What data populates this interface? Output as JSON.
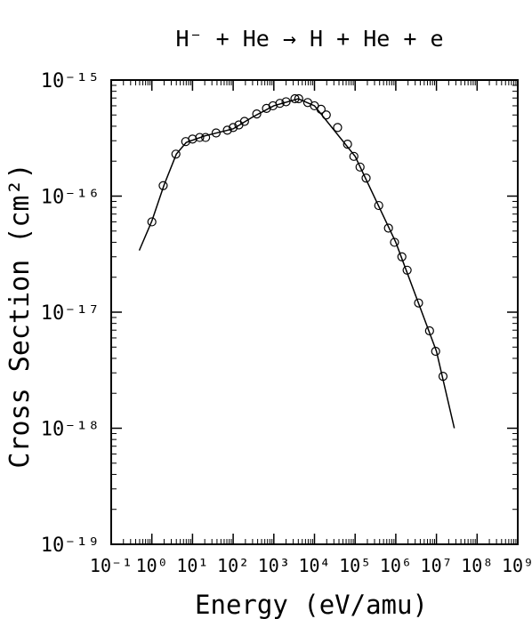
{
  "chart_data": {
    "type": "scatter",
    "title": "H⁻ + He → H + He + e",
    "x_label": "Energy (eV/amu)",
    "y_label": "Cross Section (cm²)",
    "log_x": true,
    "log_y": true,
    "xlim": [
      0.1,
      1000000000
    ],
    "ylim": [
      1e-19,
      1e-15
    ],
    "xticks": [
      {
        "value": 0.1,
        "label": "10⁻¹"
      },
      {
        "value": 1,
        "label": "10⁰"
      },
      {
        "value": 10,
        "label": "10¹"
      },
      {
        "value": 100,
        "label": "10²"
      },
      {
        "value": 1000,
        "label": "10³"
      },
      {
        "value": 10000,
        "label": "10⁴"
      },
      {
        "value": 100000,
        "label": "10⁵"
      },
      {
        "value": 1000000,
        "label": "10⁶"
      },
      {
        "value": 10000000,
        "label": "10⁷"
      },
      {
        "value": 100000000,
        "label": "10⁸"
      },
      {
        "value": 1000000000,
        "label": "10⁹"
      }
    ],
    "yticks": [
      {
        "value": 1e-19,
        "label": "10⁻¹⁹"
      },
      {
        "value": 1e-18,
        "label": "10⁻¹⁸"
      },
      {
        "value": 1e-17,
        "label": "10⁻¹⁷"
      },
      {
        "value": 1e-16,
        "label": "10⁻¹⁶"
      },
      {
        "value": 1e-15,
        "label": "10⁻¹⁵"
      }
    ],
    "series": [
      {
        "style": "markers",
        "color": "#000000",
        "x": [
          1,
          1.9,
          3.9,
          6.8,
          10,
          15,
          21,
          38,
          72,
          100,
          138,
          190,
          380,
          660,
          950,
          1410,
          2000,
          3300,
          4100,
          6800,
          10000,
          14500,
          19500,
          37000,
          65000,
          93000,
          132000,
          186000,
          380000,
          660000,
          930000,
          1410000,
          1900000,
          3630000,
          6760000,
          9550000,
          14500000
        ],
        "values": [
          6e-17,
          1.23e-16,
          2.3e-16,
          2.95e-16,
          3.1e-16,
          3.2e-16,
          3.2e-16,
          3.5e-16,
          3.7e-16,
          3.9e-16,
          4.1e-16,
          4.4e-16,
          5.1e-16,
          5.7e-16,
          6e-16,
          6.3e-16,
          6.5e-16,
          6.9e-16,
          6.9e-16,
          6.4e-16,
          6e-16,
          5.6e-16,
          5e-16,
          3.9e-16,
          2.8e-16,
          2.2e-16,
          1.78e-16,
          1.43e-16,
          8.3e-17,
          5.3e-17,
          4e-17,
          3e-17,
          2.3e-17,
          1.2e-17,
          6.9e-18,
          4.6e-18,
          2.8e-18
        ]
      },
      {
        "style": "line",
        "color": "#000000",
        "x": [
          0.49,
          1,
          2,
          4,
          7,
          20,
          100,
          300,
          1000,
          4000,
          10000,
          100000,
          1000000,
          10000000,
          27500000
        ],
        "values": [
          3.4e-17,
          6.1e-17,
          1.25e-16,
          2.3e-16,
          2.9e-16,
          3.3e-16,
          3.8e-16,
          4.8e-16,
          6e-16,
          6.9e-16,
          6e-16,
          2.2e-16,
          4e-17,
          4.6e-18,
          1e-18
        ]
      }
    ]
  }
}
